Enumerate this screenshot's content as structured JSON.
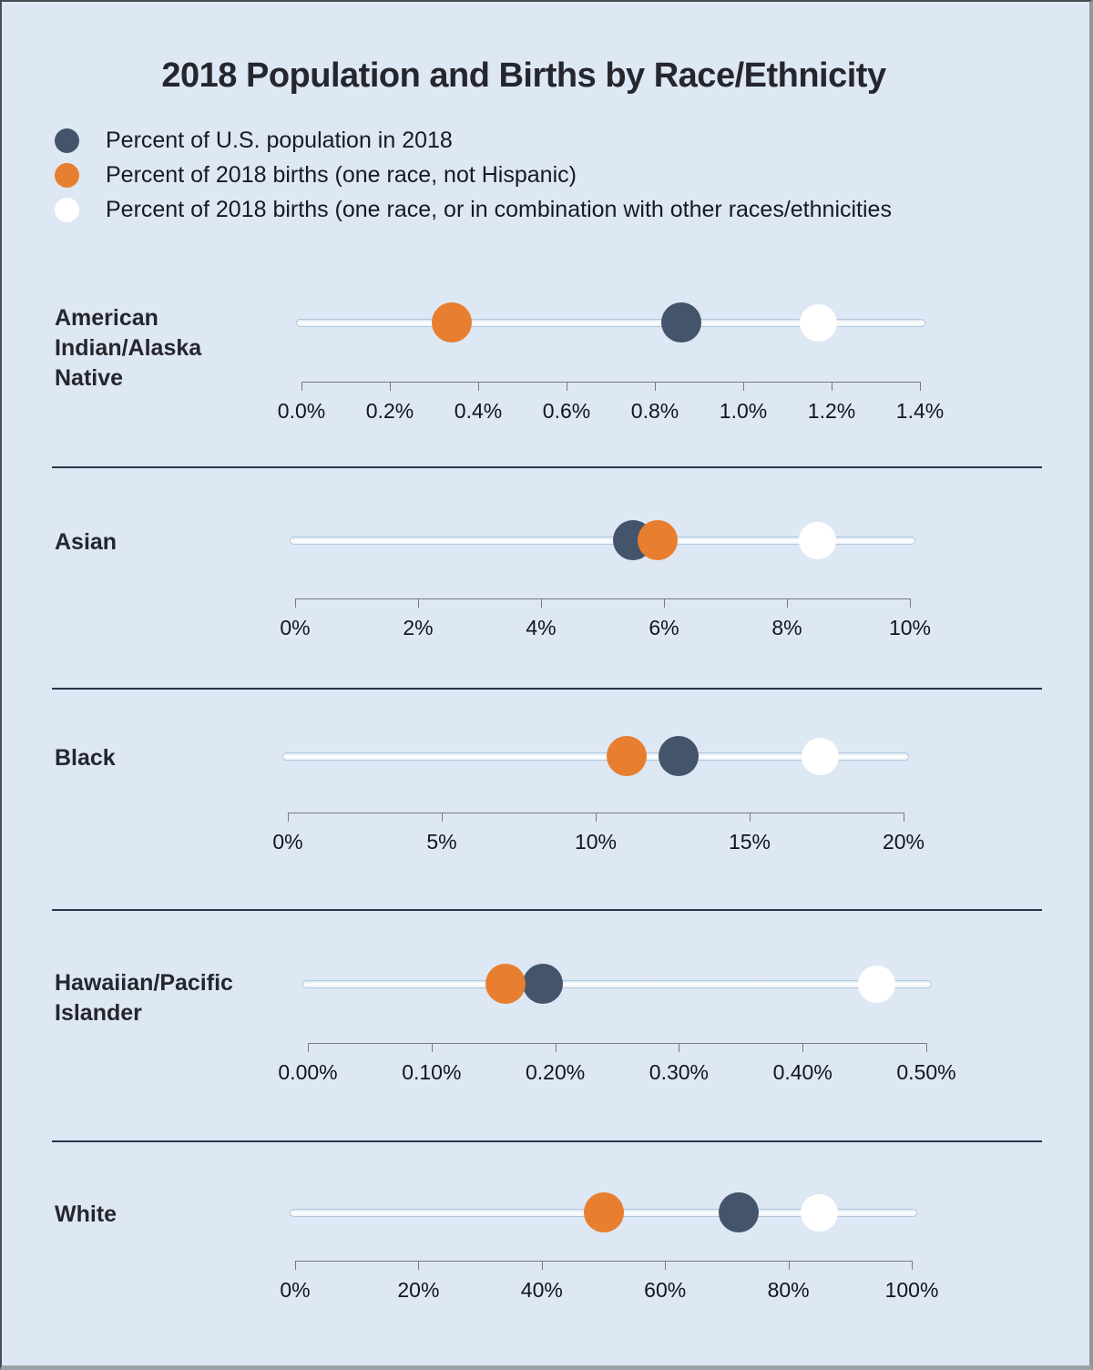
{
  "title": "2018 Population and Births by Race/Ethnicity",
  "colors": {
    "background": "#dde8f4",
    "population_dot": "#44546A",
    "births_single_race_dot": "#E87E2F",
    "births_combination_dot": "#FFFFFF",
    "track_border": "#b2c8dd",
    "divider": "#2b3647",
    "axis": "#7a7a7a"
  },
  "legend": [
    {
      "id": "population",
      "label": "Percent of U.S. population in 2018",
      "color": "#44546A"
    },
    {
      "id": "births_single_race",
      "label": "Percent of 2018 births (one race, not Hispanic)",
      "color": "#E87E2F"
    },
    {
      "id": "births_combination",
      "label": "Percent of 2018 births (one race, or in combination with other races/ethnicities",
      "color": "#FFFFFF"
    }
  ],
  "chart_data": [
    {
      "type": "scatter",
      "title": "American Indian/Alaska Native",
      "xlim": [
        0,
        1.4
      ],
      "xtick_labels": [
        "0.0%",
        "0.2%",
        "0.4%",
        "0.6%",
        "0.8%",
        "1.0%",
        "1.2%",
        "1.4%"
      ],
      "points": {
        "population": 0.86,
        "births_single_race": 0.34,
        "births_combination": 1.17
      }
    },
    {
      "type": "scatter",
      "title": "Asian",
      "xlim": [
        0,
        10
      ],
      "xtick_labels": [
        "0%",
        "2%",
        "4%",
        "6%",
        "8%",
        "10%"
      ],
      "points": {
        "population": 5.5,
        "births_single_race": 5.9,
        "births_combination": 8.5
      }
    },
    {
      "type": "scatter",
      "title": "Black",
      "xlim": [
        0,
        20
      ],
      "xtick_labels": [
        "0%",
        "5%",
        "10%",
        "15%",
        "20%"
      ],
      "points": {
        "population": 12.7,
        "births_single_race": 11.0,
        "births_combination": 17.3
      }
    },
    {
      "type": "scatter",
      "title": "Hawaiian/Pacific Islander",
      "xlim": [
        0,
        0.5
      ],
      "xtick_labels": [
        "0.00%",
        "0.10%",
        "0.20%",
        "0.30%",
        "0.40%",
        "0.50%"
      ],
      "points": {
        "population": 0.19,
        "births_single_race": 0.16,
        "births_combination": 0.46
      }
    },
    {
      "type": "scatter",
      "title": "White",
      "xlim": [
        0,
        100
      ],
      "xtick_labels": [
        "0%",
        "20%",
        "40%",
        "60%",
        "80%",
        "100%"
      ],
      "points": {
        "population": 72.0,
        "births_single_race": 50.0,
        "births_combination": 85.0
      }
    }
  ]
}
